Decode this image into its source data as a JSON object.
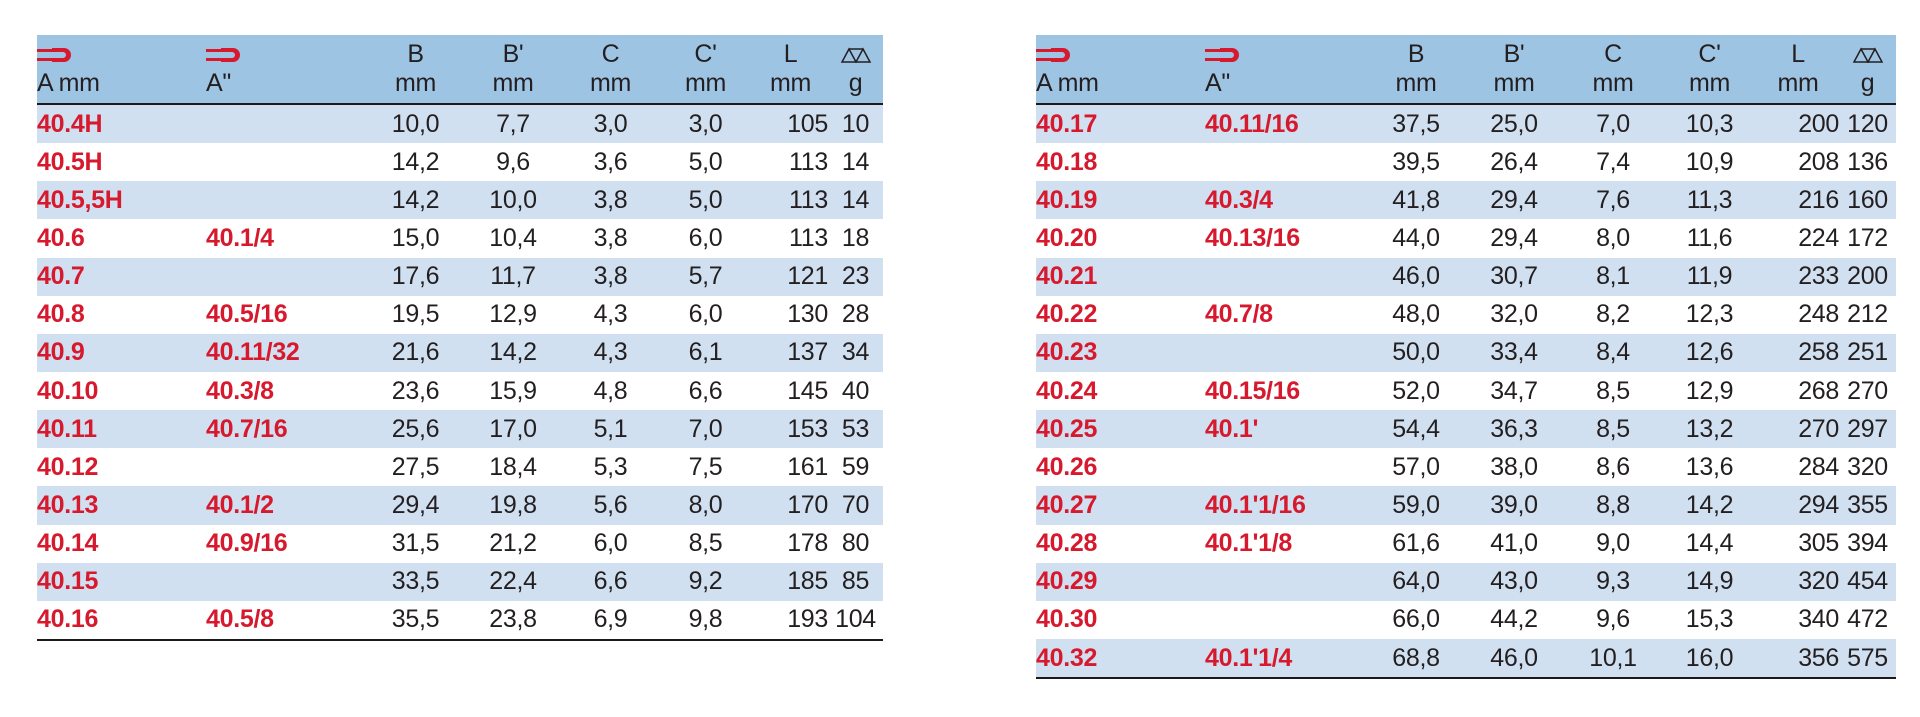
{
  "header": {
    "a_mm_label": "A mm",
    "a_inch_label": "A\"",
    "col_b": "B",
    "col_b_prime": "B'",
    "col_c": "C",
    "col_c_prime": "C'",
    "col_l": "L",
    "unit_mm": "mm",
    "unit_g": "g",
    "icons": [
      "wrench-size-icon",
      "wrench-size-icon",
      "scale-weight-icon"
    ]
  },
  "colors": {
    "header_bg": "#9ec4e4",
    "stripe_bg": "#d1e0f0",
    "code_red": "#d7192e"
  },
  "left_rows": [
    {
      "a": "40.4H",
      "ai": "",
      "b": "10,0",
      "bp": "7,7",
      "c": "3,0",
      "cp": "3,0",
      "l": "105",
      "g": "10"
    },
    {
      "a": "40.5H",
      "ai": "",
      "b": "14,2",
      "bp": "9,6",
      "c": "3,6",
      "cp": "5,0",
      "l": "113",
      "g": "14"
    },
    {
      "a": "40.5,5H",
      "ai": "",
      "b": "14,2",
      "bp": "10,0",
      "c": "3,8",
      "cp": "5,0",
      "l": "113",
      "g": "14"
    },
    {
      "a": "40.6",
      "ai": "40.1/4",
      "b": "15,0",
      "bp": "10,4",
      "c": "3,8",
      "cp": "6,0",
      "l": "113",
      "g": "18"
    },
    {
      "a": "40.7",
      "ai": "",
      "b": "17,6",
      "bp": "11,7",
      "c": "3,8",
      "cp": "5,7",
      "l": "121",
      "g": "23"
    },
    {
      "a": "40.8",
      "ai": "40.5/16",
      "b": "19,5",
      "bp": "12,9",
      "c": "4,3",
      "cp": "6,0",
      "l": "130",
      "g": "28"
    },
    {
      "a": "40.9",
      "ai": "40.11/32",
      "b": "21,6",
      "bp": "14,2",
      "c": "4,3",
      "cp": "6,1",
      "l": "137",
      "g": "34"
    },
    {
      "a": "40.10",
      "ai": "40.3/8",
      "b": "23,6",
      "bp": "15,9",
      "c": "4,8",
      "cp": "6,6",
      "l": "145",
      "g": "40"
    },
    {
      "a": "40.11",
      "ai": "40.7/16",
      "b": "25,6",
      "bp": "17,0",
      "c": "5,1",
      "cp": "7,0",
      "l": "153",
      "g": "53"
    },
    {
      "a": "40.12",
      "ai": "",
      "b": "27,5",
      "bp": "18,4",
      "c": "5,3",
      "cp": "7,5",
      "l": "161",
      "g": "59"
    },
    {
      "a": "40.13",
      "ai": "40.1/2",
      "b": "29,4",
      "bp": "19,8",
      "c": "5,6",
      "cp": "8,0",
      "l": "170",
      "g": "70"
    },
    {
      "a": "40.14",
      "ai": "40.9/16",
      "b": "31,5",
      "bp": "21,2",
      "c": "6,0",
      "cp": "8,5",
      "l": "178",
      "g": "80"
    },
    {
      "a": "40.15",
      "ai": "",
      "b": "33,5",
      "bp": "22,4",
      "c": "6,6",
      "cp": "9,2",
      "l": "185",
      "g": "85"
    },
    {
      "a": "40.16",
      "ai": "40.5/8",
      "b": "35,5",
      "bp": "23,8",
      "c": "6,9",
      "cp": "9,8",
      "l": "193",
      "g": "104"
    }
  ],
  "right_rows": [
    {
      "a": "40.17",
      "ai": "40.11/16",
      "b": "37,5",
      "bp": "25,0",
      "c": "7,0",
      "cp": "10,3",
      "l": "200",
      "g": "120"
    },
    {
      "a": "40.18",
      "ai": "",
      "b": "39,5",
      "bp": "26,4",
      "c": "7,4",
      "cp": "10,9",
      "l": "208",
      "g": "136"
    },
    {
      "a": "40.19",
      "ai": "40.3/4",
      "b": "41,8",
      "bp": "29,4",
      "c": "7,6",
      "cp": "11,3",
      "l": "216",
      "g": "160"
    },
    {
      "a": "40.20",
      "ai": "40.13/16",
      "b": "44,0",
      "bp": "29,4",
      "c": "8,0",
      "cp": "11,6",
      "l": "224",
      "g": "172"
    },
    {
      "a": "40.21",
      "ai": "",
      "b": "46,0",
      "bp": "30,7",
      "c": "8,1",
      "cp": "11,9",
      "l": "233",
      "g": "200"
    },
    {
      "a": "40.22",
      "ai": "40.7/8",
      "b": "48,0",
      "bp": "32,0",
      "c": "8,2",
      "cp": "12,3",
      "l": "248",
      "g": "212"
    },
    {
      "a": "40.23",
      "ai": "",
      "b": "50,0",
      "bp": "33,4",
      "c": "8,4",
      "cp": "12,6",
      "l": "258",
      "g": "251"
    },
    {
      "a": "40.24",
      "ai": "40.15/16",
      "b": "52,0",
      "bp": "34,7",
      "c": "8,5",
      "cp": "12,9",
      "l": "268",
      "g": "270"
    },
    {
      "a": "40.25",
      "ai": "40.1'",
      "b": "54,4",
      "bp": "36,3",
      "c": "8,5",
      "cp": "13,2",
      "l": "270",
      "g": "297"
    },
    {
      "a": "40.26",
      "ai": "",
      "b": "57,0",
      "bp": "38,0",
      "c": "8,6",
      "cp": "13,6",
      "l": "284",
      "g": "320"
    },
    {
      "a": "40.27",
      "ai": "40.1'1/16",
      "b": "59,0",
      "bp": "39,0",
      "c": "8,8",
      "cp": "14,2",
      "l": "294",
      "g": "355"
    },
    {
      "a": "40.28",
      "ai": "40.1'1/8",
      "b": "61,6",
      "bp": "41,0",
      "c": "9,0",
      "cp": "14,4",
      "l": "305",
      "g": "394"
    },
    {
      "a": "40.29",
      "ai": "",
      "b": "64,0",
      "bp": "43,0",
      "c": "9,3",
      "cp": "14,9",
      "l": "320",
      "g": "454"
    },
    {
      "a": "40.30",
      "ai": "",
      "b": "66,0",
      "bp": "44,2",
      "c": "9,6",
      "cp": "15,3",
      "l": "340",
      "g": "472"
    },
    {
      "a": "40.32",
      "ai": "40.1'1/4",
      "b": "68,8",
      "bp": "46,0",
      "c": "10,1",
      "cp": "16,0",
      "l": "356",
      "g": "575"
    }
  ]
}
